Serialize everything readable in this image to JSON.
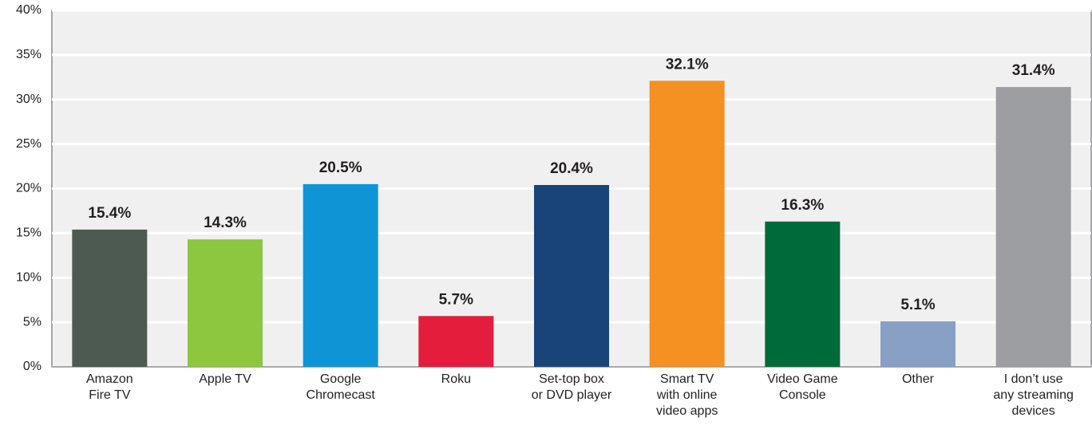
{
  "chart_data": {
    "type": "bar",
    "categories": [
      "Amazon\nFire TV",
      "Apple TV",
      "Google\nChromecast",
      "Roku",
      "Set-top box\nor DVD player",
      "Smart TV\nwith online\nvideo apps",
      "Video Game\nConsole",
      "Other",
      "I don’t use\nany streaming\ndevices"
    ],
    "values": [
      15.4,
      14.3,
      20.5,
      5.7,
      20.4,
      32.1,
      16.3,
      5.1,
      31.4
    ],
    "value_labels": [
      "15.4%",
      "14.3%",
      "20.5%",
      "5.7%",
      "20.4%",
      "32.1%",
      "16.3%",
      "5.1%",
      "31.4%"
    ],
    "colors": [
      "#4d5a51",
      "#8dc63f",
      "#0f95d6",
      "#e31d3b",
      "#18447a",
      "#f39123",
      "#006a3a",
      "#87a0c4",
      "#9d9ea2"
    ],
    "ylim": [
      0,
      40
    ],
    "yticks": [
      {
        "value": 0,
        "label": "0%"
      },
      {
        "value": 5,
        "label": "5%"
      },
      {
        "value": 10,
        "label": "10%"
      },
      {
        "value": 15,
        "label": "15%"
      },
      {
        "value": 20,
        "label": "20%"
      },
      {
        "value": 25,
        "label": "25%"
      },
      {
        "value": 30,
        "label": "30%"
      },
      {
        "value": 35,
        "label": "35%"
      },
      {
        "value": 40,
        "label": "40%"
      }
    ],
    "grid": true
  }
}
